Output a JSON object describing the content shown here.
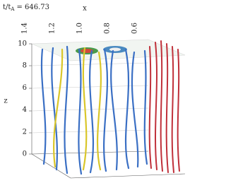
{
  "annotation": {
    "prefix": "t/t",
    "subscript": "A",
    "suffix": "= 646.73"
  },
  "axes": {
    "x_label": "x",
    "z_label": "z",
    "x_ticks": [
      "1.4",
      "1.2",
      "1.0",
      "0.8",
      "0.6"
    ],
    "z_ticks": [
      "10",
      "8",
      "6",
      "4",
      "2",
      "0"
    ]
  }
}
